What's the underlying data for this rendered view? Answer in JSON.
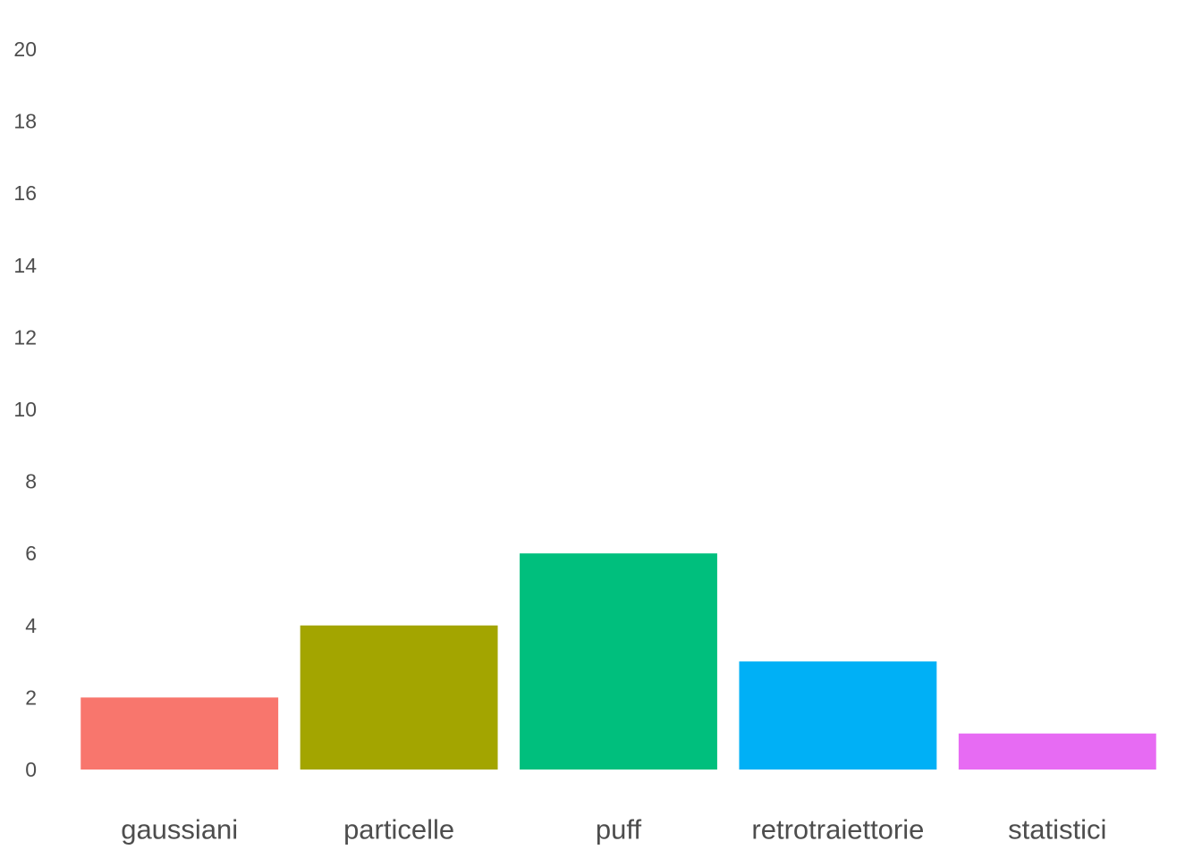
{
  "chart_data": {
    "type": "bar",
    "title": "",
    "xlabel": "",
    "ylabel": "",
    "categories": [
      "gaussiani",
      "particelle",
      "puff",
      "retrotraiettorie",
      "statistici"
    ],
    "values": [
      2,
      4,
      6,
      3,
      1
    ],
    "colors": [
      "#F8766D",
      "#A3A500",
      "#00BF7D",
      "#00B0F6",
      "#E76BF3"
    ],
    "ylim": [
      0,
      20
    ],
    "yticks": [
      0,
      2,
      4,
      6,
      8,
      10,
      12,
      14,
      16,
      18,
      20
    ],
    "grid": false,
    "legend": "none"
  }
}
